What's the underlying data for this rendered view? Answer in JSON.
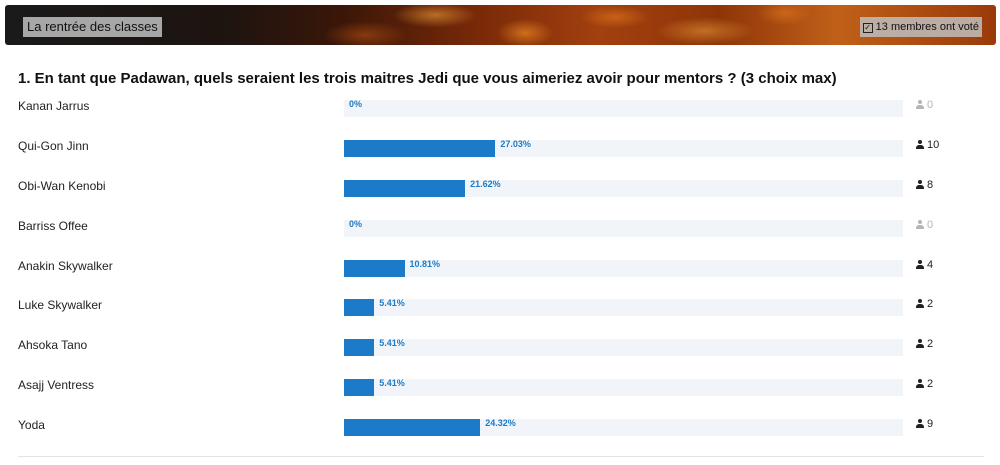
{
  "banner": {
    "title": "La rentrée des classes",
    "voters": "13 membres ont voté"
  },
  "question": {
    "text": "1. En tant que Padawan, quels seraient les trois maitres Jedi que vous aimeriez avoir pour mentors ? (3 choix max)"
  },
  "options": [
    {
      "name": "Kanan Jarrus",
      "percent": 0,
      "percent_label": "0%",
      "count": "0"
    },
    {
      "name": "Qui-Gon Jinn",
      "percent": 27.03,
      "percent_label": "27.03%",
      "count": "10"
    },
    {
      "name": "Obi-Wan Kenobi",
      "percent": 21.62,
      "percent_label": "21.62%",
      "count": "8"
    },
    {
      "name": "Barriss Offee",
      "percent": 0,
      "percent_label": "0%",
      "count": "0"
    },
    {
      "name": "Anakin Skywalker",
      "percent": 10.81,
      "percent_label": "10.81%",
      "count": "4"
    },
    {
      "name": "Luke Skywalker",
      "percent": 5.41,
      "percent_label": "5.41%",
      "count": "2"
    },
    {
      "name": "Ahsoka Tano",
      "percent": 5.41,
      "percent_label": "5.41%",
      "count": "2"
    },
    {
      "name": "Asajj Ventress",
      "percent": 5.41,
      "percent_label": "5.41%",
      "count": "2"
    },
    {
      "name": "Yoda",
      "percent": 24.32,
      "percent_label": "24.32%",
      "count": "9"
    }
  ],
  "colors": {
    "bar": "#1b7bc8",
    "track": "#f1f4f8",
    "zero_count": "#b5b5b5"
  },
  "icons": {
    "voters": "check-square-icon",
    "count": "user-icon"
  }
}
